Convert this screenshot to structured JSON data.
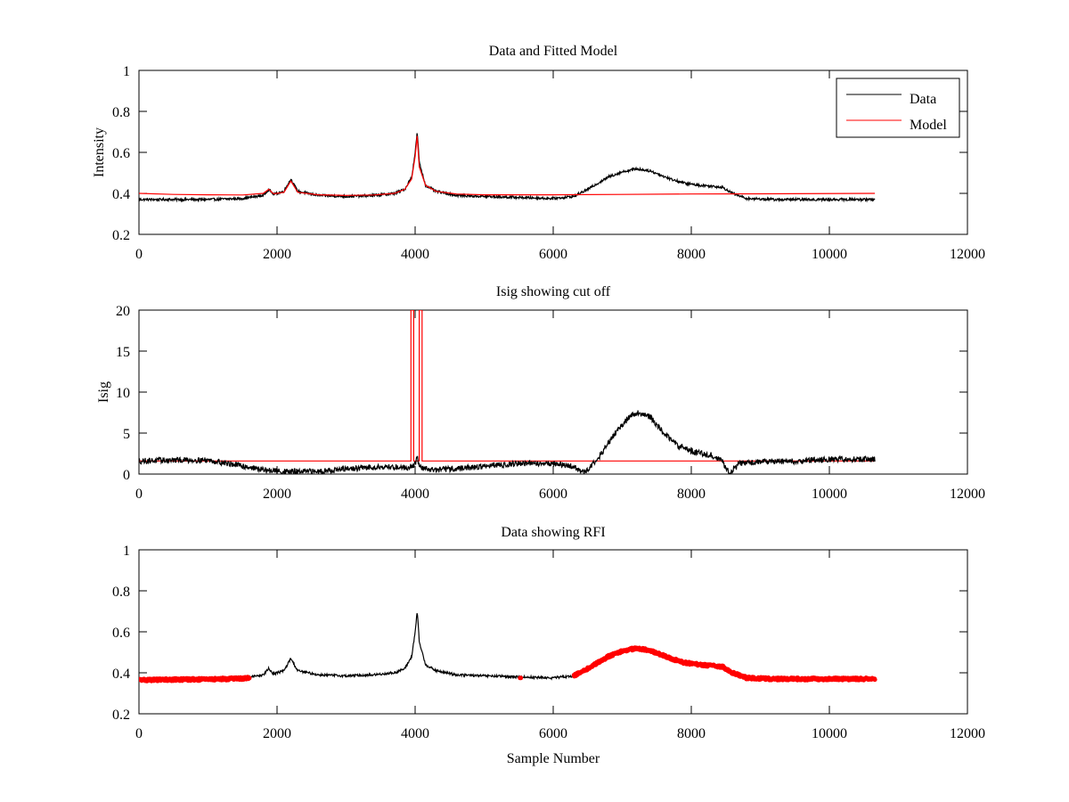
{
  "chart_data": [
    {
      "type": "line",
      "title": "Data and Fitted Model",
      "xlabel": "",
      "ylabel": "Intensity",
      "xlim": [
        0,
        12000
      ],
      "ylim": [
        0.2,
        1
      ],
      "xticks": [
        0,
        2000,
        4000,
        6000,
        8000,
        10000,
        12000
      ],
      "yticks": [
        0.2,
        0.4,
        0.6,
        0.8,
        1
      ],
      "xtick_labels": [
        "0",
        "2000",
        "4000",
        "6000",
        "8000",
        "10000",
        "12000"
      ],
      "ytick_labels": [
        "0.2",
        "0.4",
        "0.6",
        "0.8",
        "1"
      ],
      "grid": false,
      "legend": "top-right",
      "series": [
        {
          "name": "Data",
          "color": "#000000",
          "style": "line",
          "noise": 0.006,
          "x": [
            0,
            500,
            1000,
            1500,
            1800,
            1880,
            1950,
            2100,
            2200,
            2300,
            2600,
            3000,
            3400,
            3700,
            3850,
            3950,
            4000,
            4030,
            4060,
            4150,
            4300,
            4600,
            5000,
            5500,
            6000,
            6300,
            6500,
            6800,
            7000,
            7200,
            7400,
            7700,
            7900,
            8100,
            8300,
            8450,
            8600,
            8800,
            9200,
            10000,
            10660
          ],
          "y": [
            0.37,
            0.37,
            0.37,
            0.375,
            0.39,
            0.42,
            0.395,
            0.41,
            0.47,
            0.41,
            0.39,
            0.385,
            0.39,
            0.4,
            0.42,
            0.48,
            0.6,
            0.7,
            0.55,
            0.44,
            0.41,
            0.39,
            0.385,
            0.38,
            0.375,
            0.385,
            0.42,
            0.48,
            0.505,
            0.52,
            0.51,
            0.47,
            0.45,
            0.44,
            0.435,
            0.43,
            0.4,
            0.375,
            0.37,
            0.37,
            0.37
          ]
        },
        {
          "name": "Model",
          "color": "#ff0000",
          "style": "line",
          "noise": 0,
          "x": [
            0,
            500,
            1000,
            1500,
            1800,
            1880,
            1950,
            2100,
            2200,
            2300,
            2600,
            3000,
            3400,
            3700,
            3850,
            3950,
            4000,
            4030,
            4060,
            4150,
            4300,
            4600,
            5000,
            6000,
            7000,
            8000,
            9000,
            10660
          ],
          "y": [
            0.4,
            0.395,
            0.393,
            0.392,
            0.4,
            0.42,
            0.398,
            0.405,
            0.46,
            0.405,
            0.393,
            0.39,
            0.392,
            0.4,
            0.42,
            0.47,
            0.58,
            0.68,
            0.53,
            0.44,
            0.41,
            0.397,
            0.393,
            0.393,
            0.395,
            0.397,
            0.398,
            0.4
          ]
        }
      ]
    },
    {
      "type": "line",
      "title": "Isig showing cut off",
      "xlabel": "",
      "ylabel": "Isig",
      "xlim": [
        0,
        12000
      ],
      "ylim": [
        0,
        20
      ],
      "xticks": [
        0,
        2000,
        4000,
        6000,
        8000,
        10000,
        12000
      ],
      "yticks": [
        0,
        5,
        10,
        15,
        20
      ],
      "xtick_labels": [
        "0",
        "2000",
        "4000",
        "6000",
        "8000",
        "10000",
        "12000"
      ],
      "ytick_labels": [
        "0",
        "5",
        "10",
        "15",
        "20"
      ],
      "grid": false,
      "legend": "none",
      "series": [
        {
          "color": "#ff0000",
          "style": "line",
          "noise": 0,
          "x": [
            0,
            3940,
            3940,
            3980,
            3980,
            4060,
            4060,
            4100,
            4100,
            10660
          ],
          "y": [
            1.6,
            1.6,
            20,
            20,
            1.6,
            1.6,
            20,
            20,
            1.6,
            1.6
          ]
        },
        {
          "color": "#000000",
          "style": "line",
          "noise": 0.35,
          "x": [
            0,
            500,
            1000,
            1500,
            1800,
            2100,
            2500,
            3000,
            3500,
            3900,
            4000,
            4030,
            4060,
            4300,
            4800,
            5500,
            6000,
            6300,
            6450,
            6700,
            6900,
            7100,
            7200,
            7400,
            7600,
            7800,
            8000,
            8300,
            8450,
            8550,
            8700,
            9000,
            9500,
            10000,
            10660
          ],
          "y": [
            1.6,
            1.7,
            1.7,
            1.0,
            0.5,
            0.3,
            0.3,
            0.6,
            0.9,
            0.8,
            1.2,
            2.3,
            0.8,
            0.5,
            0.8,
            1.3,
            1.3,
            0.9,
            0.1,
            2.5,
            5.0,
            7.0,
            7.5,
            7.0,
            5.0,
            3.5,
            2.8,
            2.3,
            1.5,
            0.2,
            1.3,
            1.5,
            1.6,
            1.8,
            1.8
          ]
        }
      ]
    },
    {
      "type": "line",
      "title": "Data showing RFI",
      "xlabel": "Sample Number",
      "ylabel": "",
      "xlim": [
        0,
        12000
      ],
      "ylim": [
        0.2,
        1
      ],
      "xticks": [
        0,
        2000,
        4000,
        6000,
        8000,
        10000,
        12000
      ],
      "yticks": [
        0.2,
        0.4,
        0.6,
        0.8,
        1
      ],
      "xtick_labels": [
        "0",
        "2000",
        "4000",
        "6000",
        "8000",
        "10000",
        "12000"
      ],
      "ytick_labels": [
        "0.2",
        "0.4",
        "0.6",
        "0.8",
        "1"
      ],
      "grid": false,
      "legend": "none",
      "series": [
        {
          "color": "#000000",
          "style": "line",
          "noise": 0.006,
          "x": [
            0,
            500,
            1000,
            1500,
            1800,
            1880,
            1950,
            2100,
            2200,
            2300,
            2600,
            3000,
            3400,
            3700,
            3850,
            3950,
            4000,
            4030,
            4060,
            4150,
            4300,
            4600,
            5000,
            5500,
            6000,
            6300,
            6500,
            6800,
            7000,
            7200,
            7400,
            7700,
            7900,
            8100,
            8300,
            8450,
            8600,
            8800,
            9200,
            10000,
            10660
          ],
          "y": [
            0.37,
            0.37,
            0.37,
            0.375,
            0.39,
            0.42,
            0.395,
            0.41,
            0.47,
            0.41,
            0.39,
            0.385,
            0.39,
            0.4,
            0.42,
            0.48,
            0.6,
            0.7,
            0.55,
            0.44,
            0.41,
            0.39,
            0.385,
            0.38,
            0.375,
            0.385,
            0.42,
            0.48,
            0.505,
            0.52,
            0.51,
            0.47,
            0.45,
            0.44,
            0.435,
            0.43,
            0.4,
            0.375,
            0.37,
            0.37,
            0.37
          ]
        },
        {
          "color": "#ff0000",
          "style": "markers",
          "noise": 0.006,
          "x": [
            0,
            500,
            1000,
            1500,
            1600
          ],
          "y": [
            0.365,
            0.367,
            0.368,
            0.372,
            0.375
          ]
        },
        {
          "color": "#ff0000",
          "style": "markers",
          "noise": 0,
          "x": [
            5520,
            5530
          ],
          "y": [
            0.375,
            0.375
          ]
        },
        {
          "color": "#ff0000",
          "style": "markers",
          "noise": 0.006,
          "x": [
            6300,
            6500,
            6800,
            7000,
            7200,
            7400,
            7700,
            7900,
            8100,
            8300,
            8450,
            8600,
            8800,
            9200,
            10000,
            10660
          ],
          "y": [
            0.385,
            0.42,
            0.48,
            0.505,
            0.52,
            0.51,
            0.47,
            0.45,
            0.44,
            0.435,
            0.43,
            0.4,
            0.375,
            0.37,
            0.37,
            0.37
          ]
        }
      ]
    }
  ]
}
